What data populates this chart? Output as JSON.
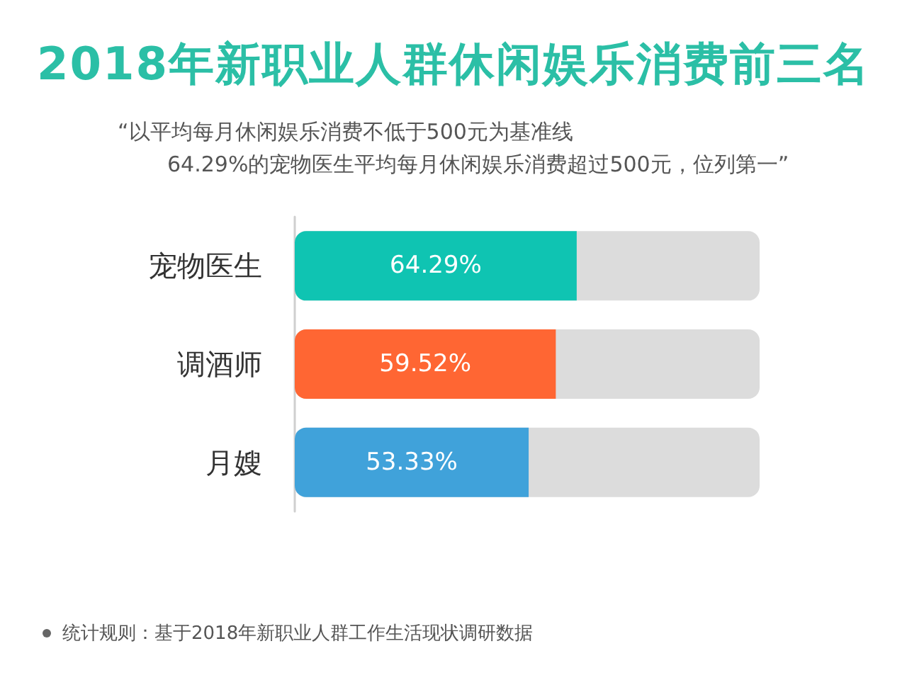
{
  "chart_data": {
    "type": "bar",
    "orientation": "horizontal",
    "title": "2018年新职业人群休闲娱乐消费前三名",
    "subtitle": "“以平均每月休闲娱乐消费不低于500元为基准线\n64.29%的宠物医生平均每月休闲娱乐消费超过500元，位列第一”",
    "categories": [
      "宠物医生",
      "调酒师",
      "月嫂"
    ],
    "values": [
      64.29,
      59.52,
      53.33
    ],
    "value_labels": [
      "64.29%",
      "59.52%",
      "53.33%"
    ],
    "colors": [
      "#0fc4b2",
      "#ff6633",
      "#40a2da"
    ],
    "xlim": [
      0,
      106
    ],
    "tick_labels": "y",
    "annotations": [
      "统计规则：基于2018年新职业人群工作生活现状调研数据"
    ]
  }
}
